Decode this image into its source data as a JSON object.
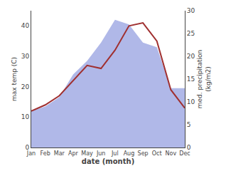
{
  "chart_data": {
    "type": "line",
    "categories": [
      "Jan",
      "Feb",
      "Mar",
      "Apr",
      "May",
      "Jun",
      "Jul",
      "Aug",
      "Sep",
      "Oct",
      "Nov",
      "Dec"
    ],
    "xlabel": "date (month)",
    "ylabel": "max temp (C)",
    "y2label": "med. precipitation\n(kg/m2)",
    "series": [
      {
        "type": "line",
        "color": "#a03030",
        "values": [
          12,
          14,
          17,
          22,
          27,
          26,
          32,
          40,
          41,
          35,
          19,
          13
        ]
      },
      {
        "type": "area",
        "color": "#b0b8e8",
        "axis": "y2",
        "values": [
          8,
          9,
          11,
          16,
          19,
          23,
          28,
          27,
          23,
          22,
          13,
          13
        ]
      }
    ],
    "ylim": [
      0,
      45
    ],
    "yticks": [
      0,
      10,
      20,
      30,
      40
    ],
    "y2lim": [
      0,
      30
    ],
    "y2ticks": [
      0,
      5,
      10,
      15,
      20,
      25,
      30
    ],
    "grid": false
  }
}
